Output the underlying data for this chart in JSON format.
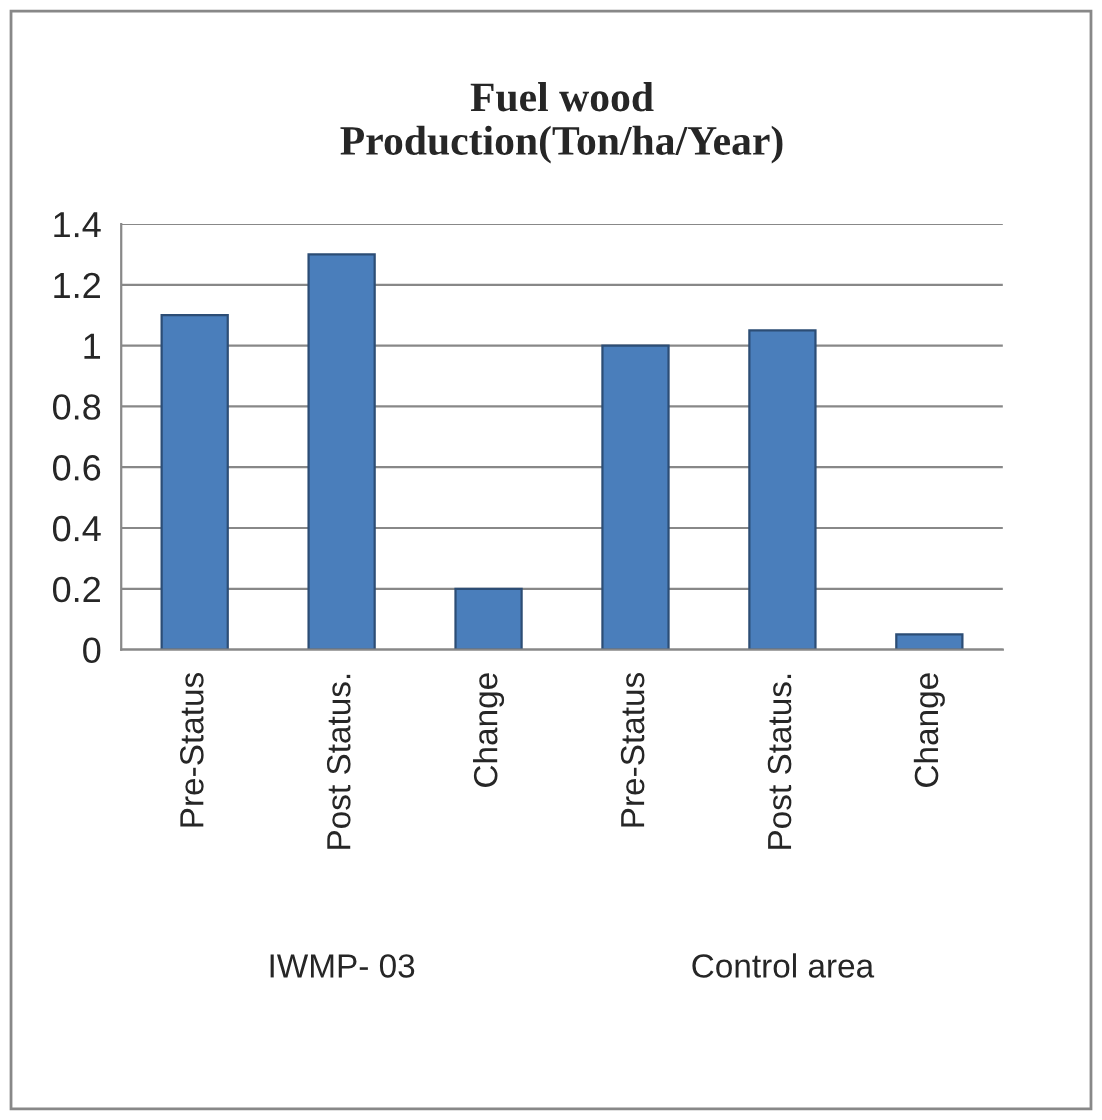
{
  "chart_data": {
    "type": "bar",
    "title": "Fuel wood\nProduction(Ton/ha/Year)",
    "categories": [
      "Pre-Status",
      "Post Status.",
      "Change",
      "Pre-Status",
      "Post Status.",
      "Change"
    ],
    "values": [
      1.1,
      1.3,
      0.2,
      1.0,
      1.05,
      0.05
    ],
    "color": "#4a7ebb",
    "ylim": [
      0,
      1.4
    ],
    "yticks": [
      0,
      0.2,
      0.4,
      0.6,
      0.8,
      1,
      1.2,
      1.4
    ],
    "grid": "y",
    "annotations": [
      "IWMP- 03",
      "Control area"
    ]
  }
}
